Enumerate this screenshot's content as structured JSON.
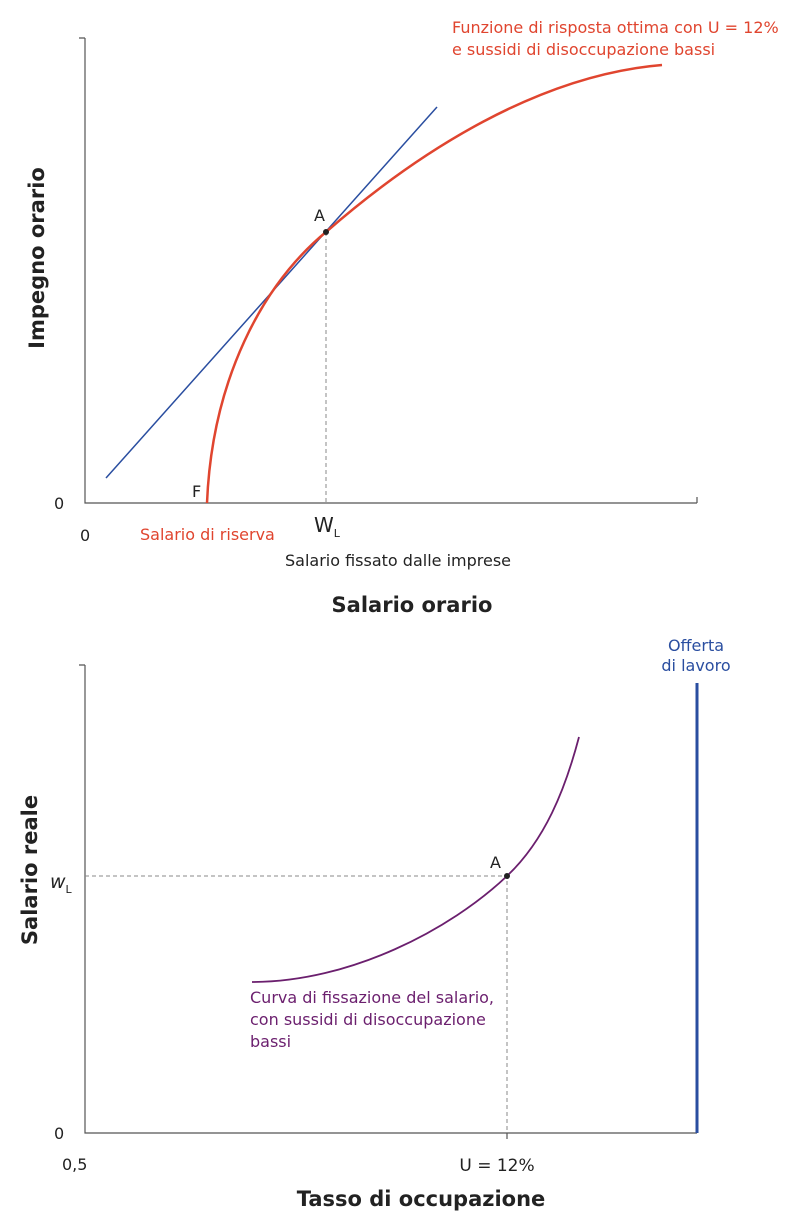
{
  "top_panel": {
    "curve_label": [
      "Funzione di risposta ottima con U = 12%",
      "e sussidi di disoccupazione bassi"
    ],
    "point_a": "A",
    "point_f": "F",
    "y_axis_title": "Impegno orario",
    "y_origin": "0",
    "x_origin": "0",
    "wage_mark": {
      "main": "W",
      "sub": "L"
    },
    "reservation_label": "Salario di riserva",
    "firm_wage_label": "Salario fissato dalle imprese",
    "x_axis_title": "Salario orario"
  },
  "bottom_panel": {
    "supply_label": [
      "Offerta",
      "di lavoro"
    ],
    "y_axis_title": "Salario reale",
    "wage_mark": {
      "main": "w",
      "sub": "L"
    },
    "point_a": "A",
    "y_origin": "0",
    "x_origin": "0,5",
    "unemployment_mark": "U = 12%",
    "curve_label": [
      "Curva di fissazione del salario,",
      "con sussidi di disoccupazione",
      "bassi"
    ],
    "x_axis_title": "Tasso di occupazione"
  }
}
